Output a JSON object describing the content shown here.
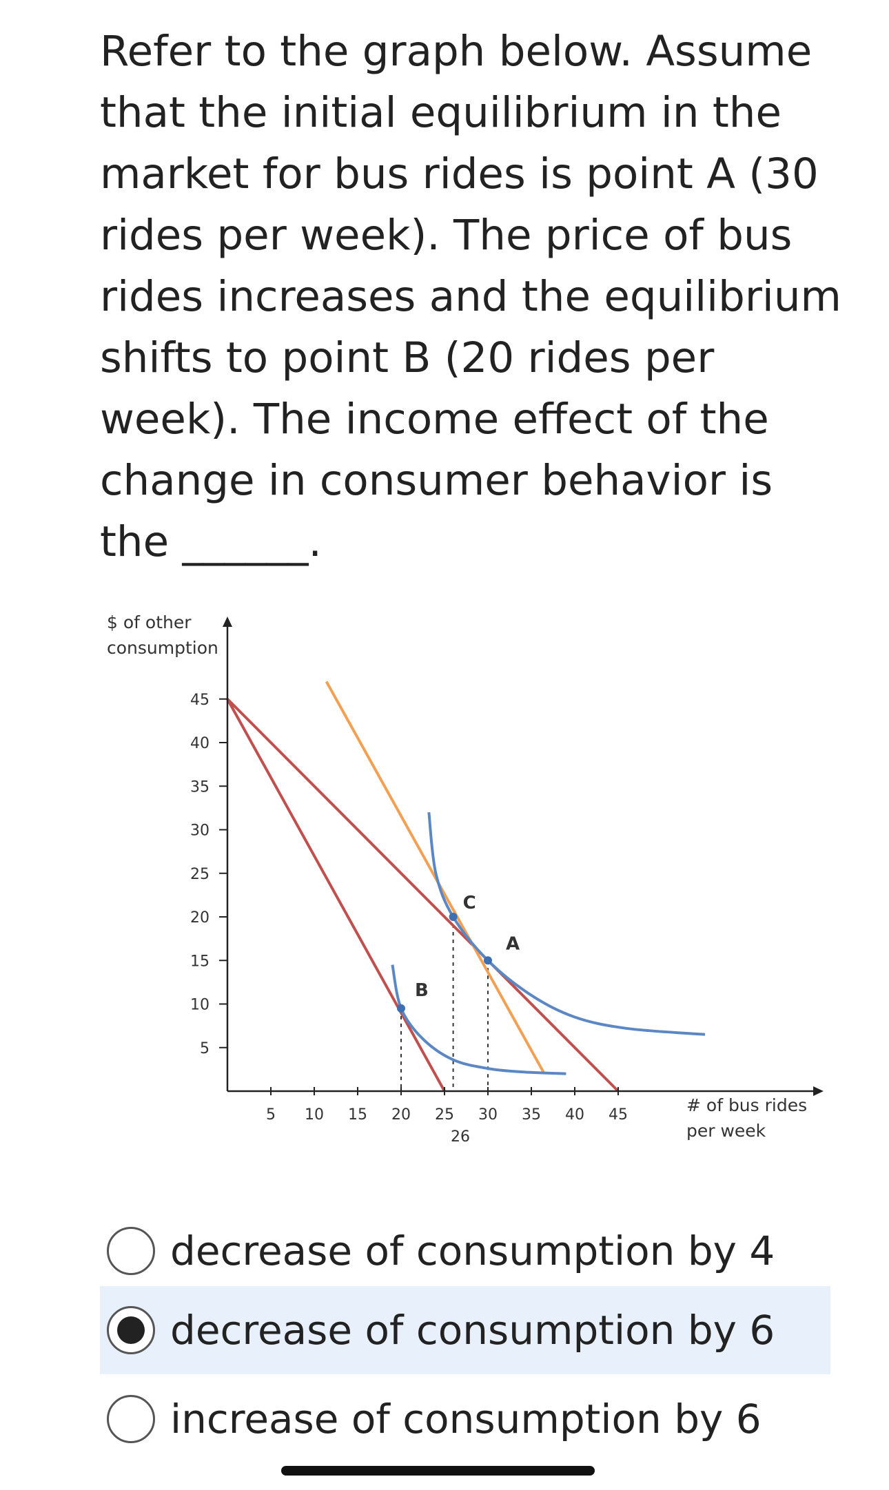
{
  "question": {
    "text": "Refer to the graph below. Assume that the initial equilibrium in the market for bus rides is point A (30 rides per week). The price of bus rides increases and the equilibrium shifts to point B (20 rides per week). The income effect of the change in consumer behavior is the ______."
  },
  "chart_data": {
    "type": "line",
    "ylabel_lines": [
      "$ of other",
      "consumption"
    ],
    "xlabel_lines": [
      "# of bus rides",
      "per week"
    ],
    "x_ticks": [
      5,
      10,
      15,
      20,
      25,
      30,
      35,
      40,
      45
    ],
    "y_ticks": [
      45,
      40,
      35,
      30,
      25,
      20,
      15,
      10,
      5
    ],
    "extra_x_tick": "26",
    "xlim": [
      0,
      68
    ],
    "ylim": [
      0,
      52
    ],
    "budget_lines": [
      {
        "points": [
          [
            0,
            45
          ],
          [
            45,
            0
          ]
        ],
        "color": "#c0504d"
      },
      {
        "points": [
          [
            0,
            45
          ],
          [
            25,
            0
          ]
        ],
        "color": "#c0504d"
      },
      {
        "points": [
          [
            11.4,
            47
          ],
          [
            36.5,
            2
          ]
        ],
        "color": "#f2a154"
      }
    ],
    "indifference_curves": [
      {
        "points": [
          [
            23.2,
            32
          ],
          [
            24,
            25
          ],
          [
            26,
            20
          ],
          [
            30,
            15
          ],
          [
            35,
            11
          ],
          [
            40,
            8.5
          ],
          [
            46,
            7.2
          ],
          [
            55,
            6.5
          ]
        ],
        "color": "#5b87c5"
      },
      {
        "points": [
          [
            19,
            14.5
          ],
          [
            20,
            9.5
          ],
          [
            22.5,
            6
          ],
          [
            26,
            3.6
          ],
          [
            30,
            2.6
          ],
          [
            34,
            2.2
          ],
          [
            39,
            2
          ]
        ],
        "color": "#5b87c5"
      }
    ],
    "points": [
      {
        "label": "A",
        "x": 30,
        "y": 15
      },
      {
        "label": "B",
        "x": 20,
        "y": 9.5
      },
      {
        "label": "C",
        "x": 26,
        "y": 20
      }
    ],
    "dashed_guides": [
      {
        "x": 20,
        "y": 9.5
      },
      {
        "x": 26,
        "y": 20
      },
      {
        "x": 30,
        "y": 15
      }
    ],
    "colors": {
      "axis": "#222222",
      "budget": "#c0504d",
      "compensated_budget": "#f2a154",
      "curve": "#5b87c5",
      "point": "#3d6fb3"
    }
  },
  "options": [
    {
      "label": "decrease of consumption by 4",
      "selected": false
    },
    {
      "label": "decrease of consumption by 6",
      "selected": true
    },
    {
      "label": "increase of consumption by 6",
      "selected": false
    }
  ]
}
